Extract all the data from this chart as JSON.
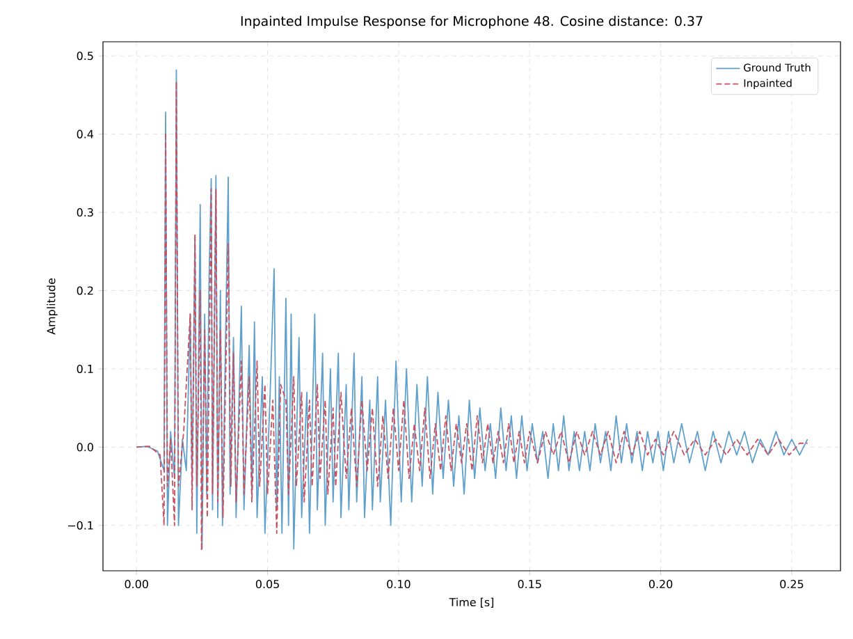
{
  "chart_data": {
    "type": "line",
    "title": "Inpainted Impulse Response for Microphone 48. Cosine distance: 0.37",
    "xlabel": "Time [s]",
    "ylabel": "Amplitude",
    "xlim": [
      -0.0128,
      0.2686
    ],
    "ylim": [
      -0.158,
      0.518
    ],
    "xticks": [
      {
        "value": 0,
        "label": "0.00"
      },
      0.05,
      {
        "value": 0.1,
        "label": "0.10"
      },
      0.15,
      {
        "value": 0.2,
        "label": "0.20"
      },
      0.25
    ],
    "yticks": [
      {
        "value": -0.1,
        "label": "−0.1"
      },
      {
        "value": 0,
        "label": "0.0"
      },
      0.1,
      0.2,
      0.3,
      0.4,
      0.5
    ],
    "grid": true,
    "legend": "top right",
    "series": [
      {
        "name": "Ground Truth",
        "color": "#5fa0cc",
        "line_style": "solid",
        "x": [
          0,
          0.004,
          0.008,
          0.0105,
          0.0111,
          0.0118,
          0.013,
          0.0145,
          0.0152,
          0.016,
          0.0175,
          0.019,
          0.0205,
          0.0212,
          0.0223,
          0.023,
          0.0243,
          0.025,
          0.026,
          0.0268,
          0.0277,
          0.0285,
          0.029,
          0.0303,
          0.031,
          0.032,
          0.0328,
          0.035,
          0.0357,
          0.037,
          0.038,
          0.04,
          0.041,
          0.043,
          0.044,
          0.045,
          0.046,
          0.048,
          0.049,
          0.051,
          0.0525,
          0.0535,
          0.0545,
          0.0555,
          0.057,
          0.058,
          0.059,
          0.06,
          0.062,
          0.063,
          0.065,
          0.066,
          0.068,
          0.069,
          0.071,
          0.072,
          0.074,
          0.075,
          0.077,
          0.078,
          0.08,
          0.081,
          0.083,
          0.084,
          0.086,
          0.087,
          0.089,
          0.09,
          0.092,
          0.093,
          0.095,
          0.097,
          0.099,
          0.101,
          0.103,
          0.105,
          0.107,
          0.109,
          0.111,
          0.113,
          0.115,
          0.117,
          0.119,
          0.121,
          0.123,
          0.125,
          0.127,
          0.129,
          0.131,
          0.133,
          0.135,
          0.137,
          0.139,
          0.141,
          0.143,
          0.145,
          0.147,
          0.149,
          0.151,
          0.153,
          0.155,
          0.157,
          0.159,
          0.161,
          0.163,
          0.165,
          0.167,
          0.169,
          0.171,
          0.173,
          0.175,
          0.177,
          0.179,
          0.181,
          0.183,
          0.185,
          0.187,
          0.189,
          0.191,
          0.193,
          0.195,
          0.197,
          0.199,
          0.201,
          0.203,
          0.205,
          0.208,
          0.211,
          0.214,
          0.217,
          0.22,
          0.223,
          0.226,
          0.229,
          0.232,
          0.235,
          0.238,
          0.241,
          0.244,
          0.247,
          0.25,
          0.253,
          0.256
        ],
        "values": [
          0,
          0.001,
          -0.005,
          -0.03,
          0.428,
          -0.1,
          0.02,
          -0.04,
          0.482,
          -0.1,
          0.01,
          -0.03,
          0.17,
          -0.05,
          0.27,
          -0.11,
          0.31,
          -0.13,
          0.17,
          -0.06,
          0.22,
          0.343,
          -0.08,
          0.347,
          -0.09,
          0.2,
          -0.1,
          0.345,
          -0.06,
          0.14,
          -0.09,
          0.18,
          -0.08,
          0.13,
          -0.06,
          0.16,
          -0.09,
          0.09,
          -0.11,
          0.07,
          0.228,
          -0.08,
          0.09,
          -0.11,
          0.19,
          -0.1,
          0.17,
          -0.13,
          0.14,
          -0.09,
          0.07,
          -0.11,
          0.17,
          -0.08,
          0.12,
          -0.1,
          0.1,
          -0.07,
          0.12,
          -0.09,
          0.08,
          -0.08,
          0.12,
          -0.07,
          0.09,
          -0.09,
          0.06,
          -0.08,
          0.09,
          -0.07,
          0.06,
          -0.1,
          0.11,
          -0.07,
          0.1,
          -0.07,
          0.08,
          -0.05,
          0.09,
          -0.06,
          0.07,
          -0.04,
          0.06,
          -0.05,
          0.04,
          -0.06,
          0.06,
          -0.04,
          0.05,
          -0.03,
          0.03,
          -0.04,
          0.05,
          -0.03,
          0.04,
          -0.04,
          0.04,
          -0.03,
          0.03,
          -0.02,
          0.02,
          -0.04,
          0.03,
          -0.03,
          0.04,
          -0.03,
          0.02,
          -0.03,
          0.02,
          -0.03,
          0.03,
          -0.02,
          0.02,
          -0.03,
          0.04,
          -0.02,
          0.03,
          -0.02,
          0.02,
          -0.03,
          0.02,
          -0.02,
          0.02,
          -0.03,
          0.02,
          -0.02,
          0.03,
          -0.02,
          0.02,
          -0.03,
          0.02,
          -0.02,
          0.02,
          -0.01,
          0.02,
          -0.02,
          0.01,
          -0.01,
          0.02,
          -0.01,
          0.01,
          -0.01,
          0.01
        ]
      },
      {
        "name": "Inpainted",
        "color": "#c9505e",
        "line_style": "dashed",
        "x": [
          0,
          0.005,
          0.009,
          0.0105,
          0.0111,
          0.0118,
          0.013,
          0.0145,
          0.0152,
          0.016,
          0.018,
          0.0205,
          0.0212,
          0.0223,
          0.023,
          0.0243,
          0.0248,
          0.026,
          0.027,
          0.0285,
          0.029,
          0.0303,
          0.031,
          0.032,
          0.033,
          0.035,
          0.036,
          0.037,
          0.038,
          0.04,
          0.041,
          0.043,
          0.044,
          0.046,
          0.047,
          0.049,
          0.05,
          0.052,
          0.0535,
          0.055,
          0.057,
          0.058,
          0.06,
          0.061,
          0.063,
          0.064,
          0.066,
          0.067,
          0.069,
          0.07,
          0.072,
          0.073,
          0.075,
          0.076,
          0.078,
          0.08,
          0.082,
          0.084,
          0.086,
          0.088,
          0.09,
          0.092,
          0.094,
          0.096,
          0.098,
          0.1,
          0.102,
          0.104,
          0.106,
          0.108,
          0.11,
          0.112,
          0.114,
          0.116,
          0.118,
          0.12,
          0.122,
          0.124,
          0.126,
          0.128,
          0.13,
          0.132,
          0.134,
          0.136,
          0.138,
          0.14,
          0.142,
          0.144,
          0.146,
          0.148,
          0.15,
          0.153,
          0.156,
          0.159,
          0.162,
          0.165,
          0.168,
          0.171,
          0.174,
          0.177,
          0.18,
          0.183,
          0.186,
          0.189,
          0.192,
          0.195,
          0.198,
          0.201,
          0.205,
          0.209,
          0.213,
          0.217,
          0.221,
          0.225,
          0.229,
          0.233,
          0.237,
          0.241,
          0.245,
          0.249,
          0.253,
          0.256
        ],
        "values": [
          0,
          0.001,
          -0.01,
          -0.1,
          0.402,
          -0.05,
          0.01,
          -0.1,
          0.467,
          -0.05,
          0.02,
          0.17,
          -0.08,
          0.272,
          -0.05,
          0.2,
          -0.132,
          0.15,
          -0.09,
          0.33,
          -0.06,
          0.33,
          -0.07,
          0.15,
          -0.09,
          0.26,
          -0.05,
          0.12,
          -0.07,
          0.11,
          -0.06,
          0.09,
          -0.07,
          0.11,
          -0.05,
          0.08,
          -0.06,
          0.06,
          -0.11,
          0.08,
          0.06,
          -0.06,
          0.09,
          -0.05,
          0.07,
          -0.07,
          0.06,
          -0.05,
          0.08,
          -0.04,
          0.06,
          -0.06,
          0.05,
          -0.05,
          0.07,
          -0.04,
          0.05,
          -0.05,
          0.06,
          -0.03,
          0.05,
          -0.05,
          0.04,
          -0.04,
          0.05,
          -0.03,
          0.06,
          -0.04,
          0.03,
          -0.03,
          0.05,
          -0.04,
          0.03,
          -0.03,
          0.04,
          -0.03,
          0.03,
          -0.02,
          0.03,
          -0.03,
          0.04,
          -0.02,
          0.03,
          -0.02,
          0.02,
          -0.02,
          0.03,
          -0.02,
          0.02,
          -0.02,
          0.02,
          -0.02,
          0.02,
          -0.01,
          0.02,
          -0.02,
          0.02,
          -0.01,
          0.02,
          -0.01,
          0.02,
          -0.02,
          0.02,
          -0.01,
          0.02,
          -0.01,
          0.01,
          -0.01,
          0.02,
          -0.01,
          0.01,
          -0.01,
          0.01,
          -0.01,
          0.01,
          -0.01,
          0.01,
          -0.01,
          0.01,
          -0.01,
          0.005,
          0.005
        ]
      }
    ]
  }
}
